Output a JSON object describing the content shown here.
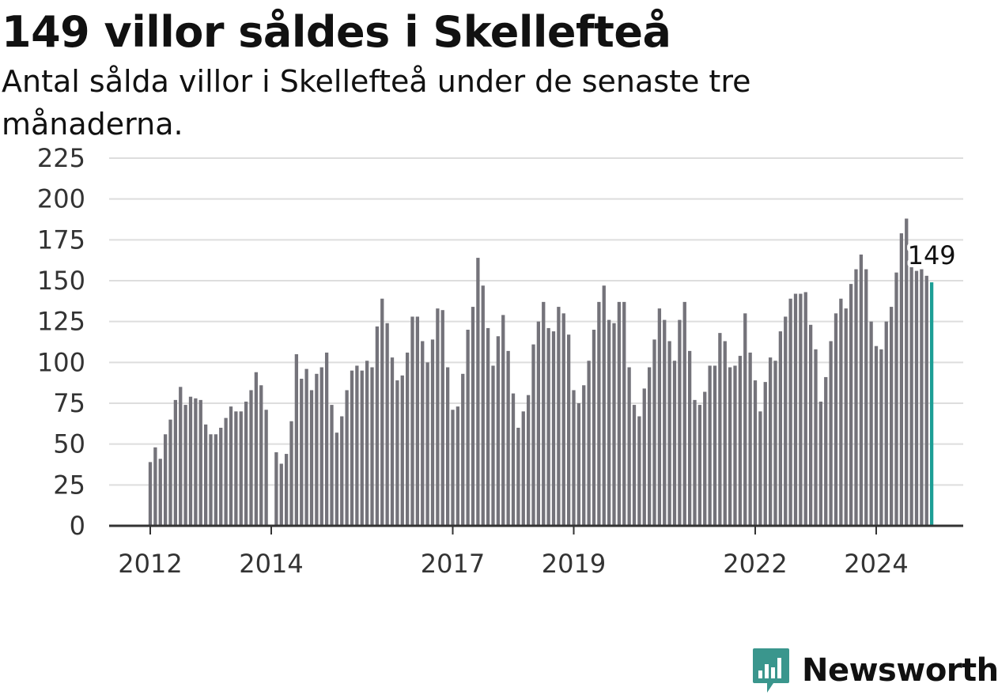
{
  "chart_data": {
    "type": "bar",
    "title": "149 villor såldes i Skellefteå",
    "subtitle": "Antal sålda villor i Skellefteå under de senaste tre månaderna.",
    "ylim": [
      0,
      225
    ],
    "yticks": [
      "0",
      "25",
      "50",
      "75",
      "100",
      "125",
      "150",
      "175",
      "200",
      "225"
    ],
    "xticks": [
      "2012",
      "2014",
      "2017",
      "2019",
      "2022",
      "2024"
    ],
    "grid": true,
    "x_start": "2012-01",
    "x_gap": "2014-01",
    "values": [
      39,
      48,
      41,
      56,
      65,
      77,
      85,
      74,
      79,
      78,
      77,
      62,
      56,
      56,
      60,
      66,
      73,
      70,
      70,
      76,
      83,
      94,
      86,
      71,
      null,
      45,
      38,
      44,
      64,
      105,
      90,
      96,
      83,
      93,
      97,
      106,
      74,
      57,
      67,
      83,
      95,
      98,
      95,
      101,
      97,
      122,
      139,
      124,
      103,
      89,
      92,
      106,
      128,
      128,
      113,
      100,
      114,
      133,
      132,
      97,
      71,
      73,
      93,
      120,
      134,
      164,
      147,
      121,
      98,
      116,
      129,
      107,
      81,
      60,
      70,
      80,
      111,
      125,
      137,
      121,
      119,
      134,
      130,
      117,
      83,
      75,
      86,
      101,
      120,
      137,
      147,
      126,
      124,
      137,
      137,
      97,
      74,
      67,
      84,
      97,
      114,
      133,
      126,
      113,
      101,
      126,
      137,
      107,
      77,
      74,
      82,
      98,
      98,
      118,
      113,
      97,
      98,
      104,
      130,
      106,
      89,
      70,
      88,
      103,
      101,
      119,
      128,
      139,
      142,
      142,
      143,
      123,
      108,
      76,
      91,
      113,
      130,
      139,
      133,
      148,
      157,
      166,
      157,
      125,
      110,
      108,
      125,
      134,
      155,
      179,
      188,
      162,
      156,
      157,
      153,
      149
    ],
    "highlight_value": "149",
    "bar_color": "#74737a",
    "highlight_color": "#1d9e95",
    "grid_color": "#dddddd",
    "axis_color": "#333333"
  },
  "brand": {
    "name": "Newsworthy",
    "color": "#3a968d",
    "icon": "bar-chart-logo-icon"
  }
}
